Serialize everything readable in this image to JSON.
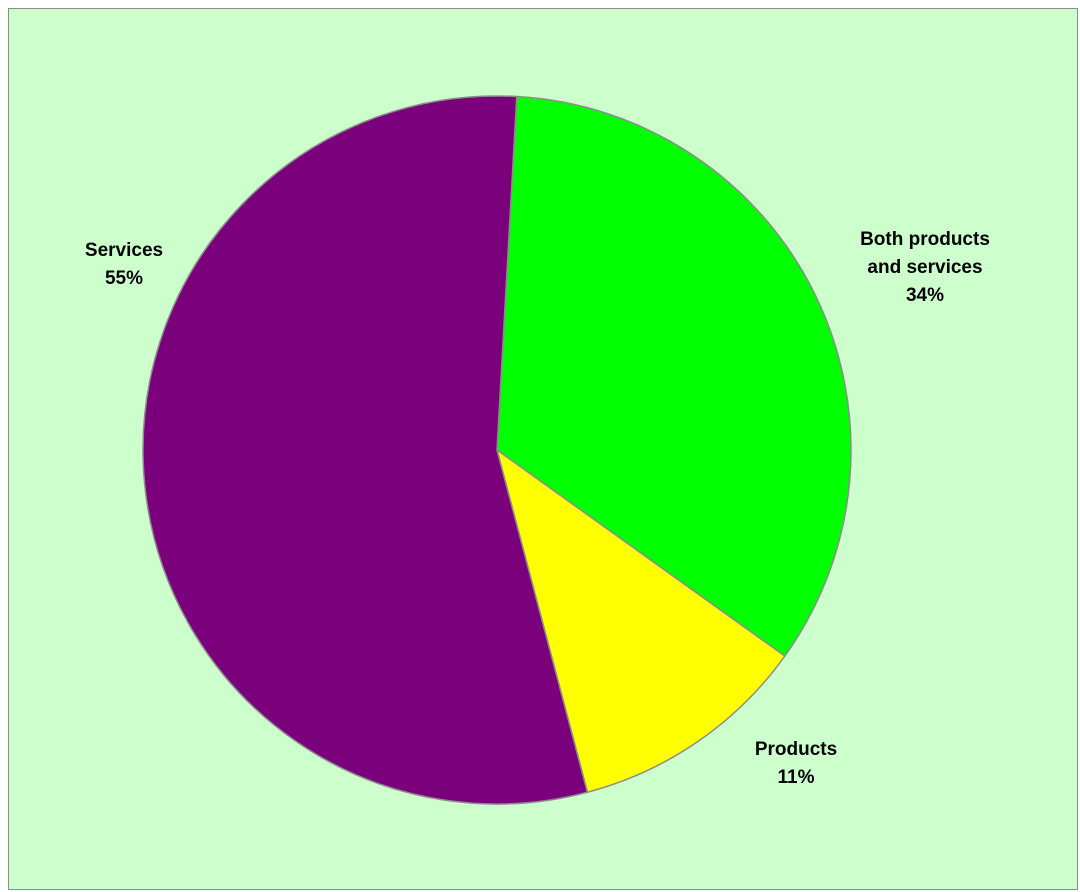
{
  "chart_data": {
    "type": "pie",
    "slices": [
      {
        "label_lines": [
          "Both products",
          "and services"
        ],
        "pct_label": "34%",
        "value": 34,
        "color": "#00ff00"
      },
      {
        "label_lines": [
          "Products"
        ],
        "pct_label": "11%",
        "value": 11,
        "color": "#ffff00"
      },
      {
        "label_lines": [
          "Services"
        ],
        "pct_label": "55%",
        "value": 55,
        "color": "#7b007b"
      }
    ],
    "start_angle_deg": 3.2,
    "direction": "clockwise",
    "background_color": "#ccffcc",
    "border_color": "#8c8c8c",
    "slice_edge_color": "#8c8c8c"
  }
}
